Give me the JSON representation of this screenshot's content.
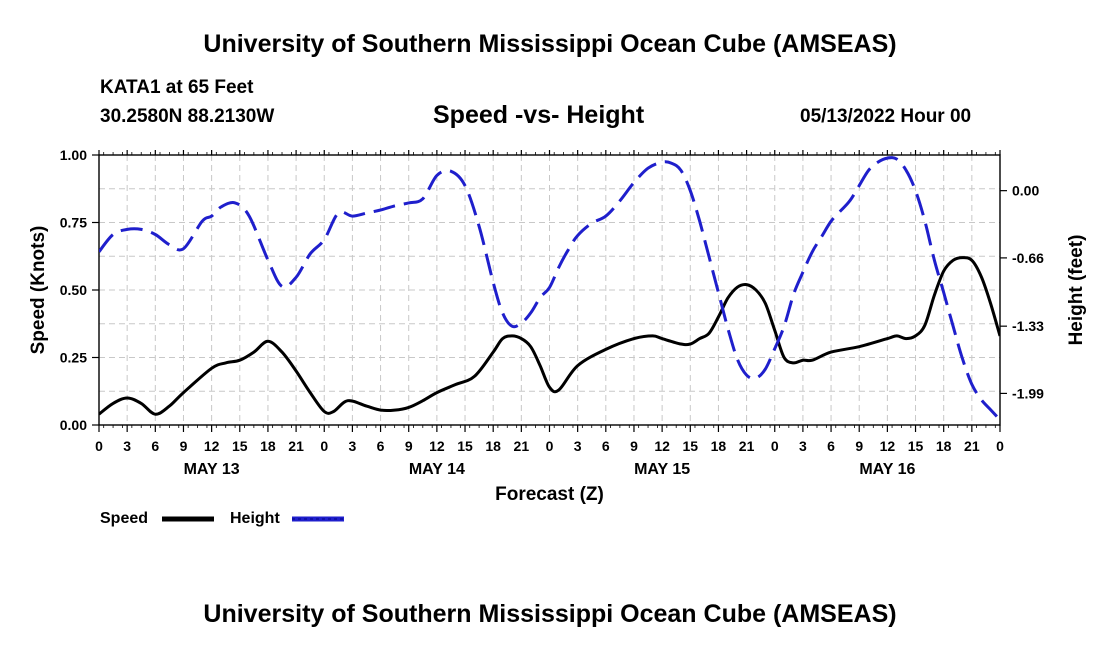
{
  "header": {
    "title": "University of Southern Mississippi Ocean Cube (AMSEAS)",
    "station": "KATA1 at 65 Feet",
    "coords": "30.2580N  88.2130W",
    "subtitle": "Speed -vs- Height",
    "datetime": "05/13/2022 Hour 00"
  },
  "footer": {
    "title": "University of Southern Mississippi Ocean Cube (AMSEAS)"
  },
  "colors": {
    "speed": "#000000",
    "height": "#1f1fcc",
    "grid": "#c8c8c8"
  },
  "chart_data": {
    "type": "line",
    "title": "Speed -vs- Height",
    "xlabel": "Forecast (Z)",
    "ylabel": "Speed (Knots)",
    "y2label": "Height (feet)",
    "xlim": [
      0,
      96
    ],
    "ylim": [
      0,
      1
    ],
    "y2lim": [
      -2.3,
      0.35
    ],
    "x_tick_hours": [
      0,
      3,
      6,
      9,
      12,
      15,
      18,
      21,
      24,
      27,
      30,
      33,
      36,
      39,
      42,
      45,
      48,
      51,
      54,
      57,
      60,
      63,
      66,
      69,
      72,
      75,
      78,
      81,
      84,
      87,
      90,
      93,
      96
    ],
    "x_tick_labels": [
      "0",
      "3",
      "6",
      "9",
      "12",
      "15",
      "18",
      "21",
      "0",
      "3",
      "6",
      "9",
      "12",
      "15",
      "18",
      "21",
      "0",
      "3",
      "6",
      "9",
      "12",
      "15",
      "18",
      "21",
      "0",
      "3",
      "6",
      "9",
      "12",
      "15",
      "18",
      "21",
      "0"
    ],
    "day_labels": [
      {
        "label": "MAY 13",
        "hour": 12
      },
      {
        "label": "MAY 14",
        "hour": 36
      },
      {
        "label": "MAY 15",
        "hour": 60
      },
      {
        "label": "MAY 16",
        "hour": 84
      }
    ],
    "y_ticks": [
      0.0,
      0.25,
      0.5,
      0.75,
      1.0
    ],
    "y_tick_labels": [
      "0.00",
      "0.25",
      "0.50",
      "0.75",
      "1.00"
    ],
    "y2_ticks": [
      0.0,
      -0.66,
      -1.33,
      -1.99
    ],
    "y2_tick_labels": [
      "0.00",
      "-0.66",
      "-1.33",
      "-1.99"
    ],
    "grid": true,
    "legend_position": "bottom-left",
    "series": [
      {
        "name": "Speed",
        "axis": "left",
        "style": "solid",
        "x": [
          0,
          1.5,
          3,
          4.5,
          6,
          7.5,
          9,
          12,
          13.5,
          15,
          16.5,
          18,
          19.5,
          21,
          22.5,
          24,
          25,
          26.5,
          28.5,
          30,
          31.5,
          33,
          34.5,
          36,
          38,
          40,
          42,
          43,
          44,
          45,
          46,
          47,
          48,
          49,
          51,
          54,
          57,
          59,
          60,
          62,
          63,
          64,
          65,
          66,
          67,
          68,
          69,
          70,
          71,
          72,
          73,
          74,
          75,
          76,
          78,
          81,
          84,
          85,
          86,
          87,
          88,
          89,
          90,
          91,
          92,
          93,
          94,
          95,
          96
        ],
        "y": [
          0.04,
          0.08,
          0.1,
          0.08,
          0.04,
          0.07,
          0.12,
          0.21,
          0.23,
          0.24,
          0.27,
          0.31,
          0.27,
          0.2,
          0.12,
          0.05,
          0.05,
          0.09,
          0.07,
          0.055,
          0.055,
          0.065,
          0.09,
          0.12,
          0.15,
          0.18,
          0.27,
          0.32,
          0.33,
          0.32,
          0.29,
          0.22,
          0.14,
          0.13,
          0.22,
          0.28,
          0.32,
          0.33,
          0.32,
          0.3,
          0.3,
          0.32,
          0.34,
          0.4,
          0.47,
          0.51,
          0.52,
          0.5,
          0.45,
          0.35,
          0.25,
          0.23,
          0.24,
          0.24,
          0.27,
          0.29,
          0.32,
          0.33,
          0.32,
          0.33,
          0.37,
          0.48,
          0.57,
          0.61,
          0.62,
          0.61,
          0.55,
          0.45,
          0.33
        ]
      },
      {
        "name": "Height",
        "axis": "right",
        "style": "dashed",
        "x": [
          0,
          1.5,
          3,
          4.5,
          6,
          7.5,
          9,
          11,
          12,
          13,
          14.5,
          16,
          18,
          19.5,
          21,
          22.5,
          24,
          25.5,
          27,
          28.5,
          30,
          31.5,
          33,
          34.5,
          36,
          37.5,
          39,
          40.5,
          42,
          43,
          44,
          45,
          46,
          47,
          48,
          49,
          50,
          51,
          52.5,
          54,
          55.5,
          57,
          58.5,
          60,
          61,
          62,
          63,
          64,
          65,
          66,
          67,
          68,
          69,
          70,
          71,
          72,
          73,
          74,
          75,
          76,
          77,
          78,
          79,
          80,
          81,
          82,
          83,
          84,
          85,
          86,
          87,
          88,
          89,
          90,
          91,
          92,
          93,
          94,
          95,
          96
        ],
        "y": [
          -0.6,
          -0.43,
          -0.38,
          -0.38,
          -0.43,
          -0.53,
          -0.57,
          -0.3,
          -0.25,
          -0.16,
          -0.12,
          -0.25,
          -0.68,
          -0.94,
          -0.85,
          -0.62,
          -0.48,
          -0.22,
          -0.25,
          -0.22,
          -0.19,
          -0.15,
          -0.12,
          -0.08,
          0.15,
          0.19,
          0.05,
          -0.35,
          -0.9,
          -1.2,
          -1.33,
          -1.3,
          -1.2,
          -1.05,
          -0.95,
          -0.75,
          -0.58,
          -0.44,
          -0.32,
          -0.25,
          -0.1,
          0.08,
          0.22,
          0.28,
          0.27,
          0.2,
          0.0,
          -0.3,
          -0.65,
          -1.0,
          -1.35,
          -1.65,
          -1.81,
          -1.84,
          -1.75,
          -1.55,
          -1.33,
          -1.02,
          -0.8,
          -0.6,
          -0.45,
          -0.3,
          -0.2,
          -0.1,
          0.05,
          0.2,
          0.28,
          0.32,
          0.31,
          0.2,
          0.0,
          -0.3,
          -0.68,
          -1.0,
          -1.33,
          -1.65,
          -1.9,
          -2.05,
          -2.15,
          -2.25
        ]
      }
    ]
  }
}
